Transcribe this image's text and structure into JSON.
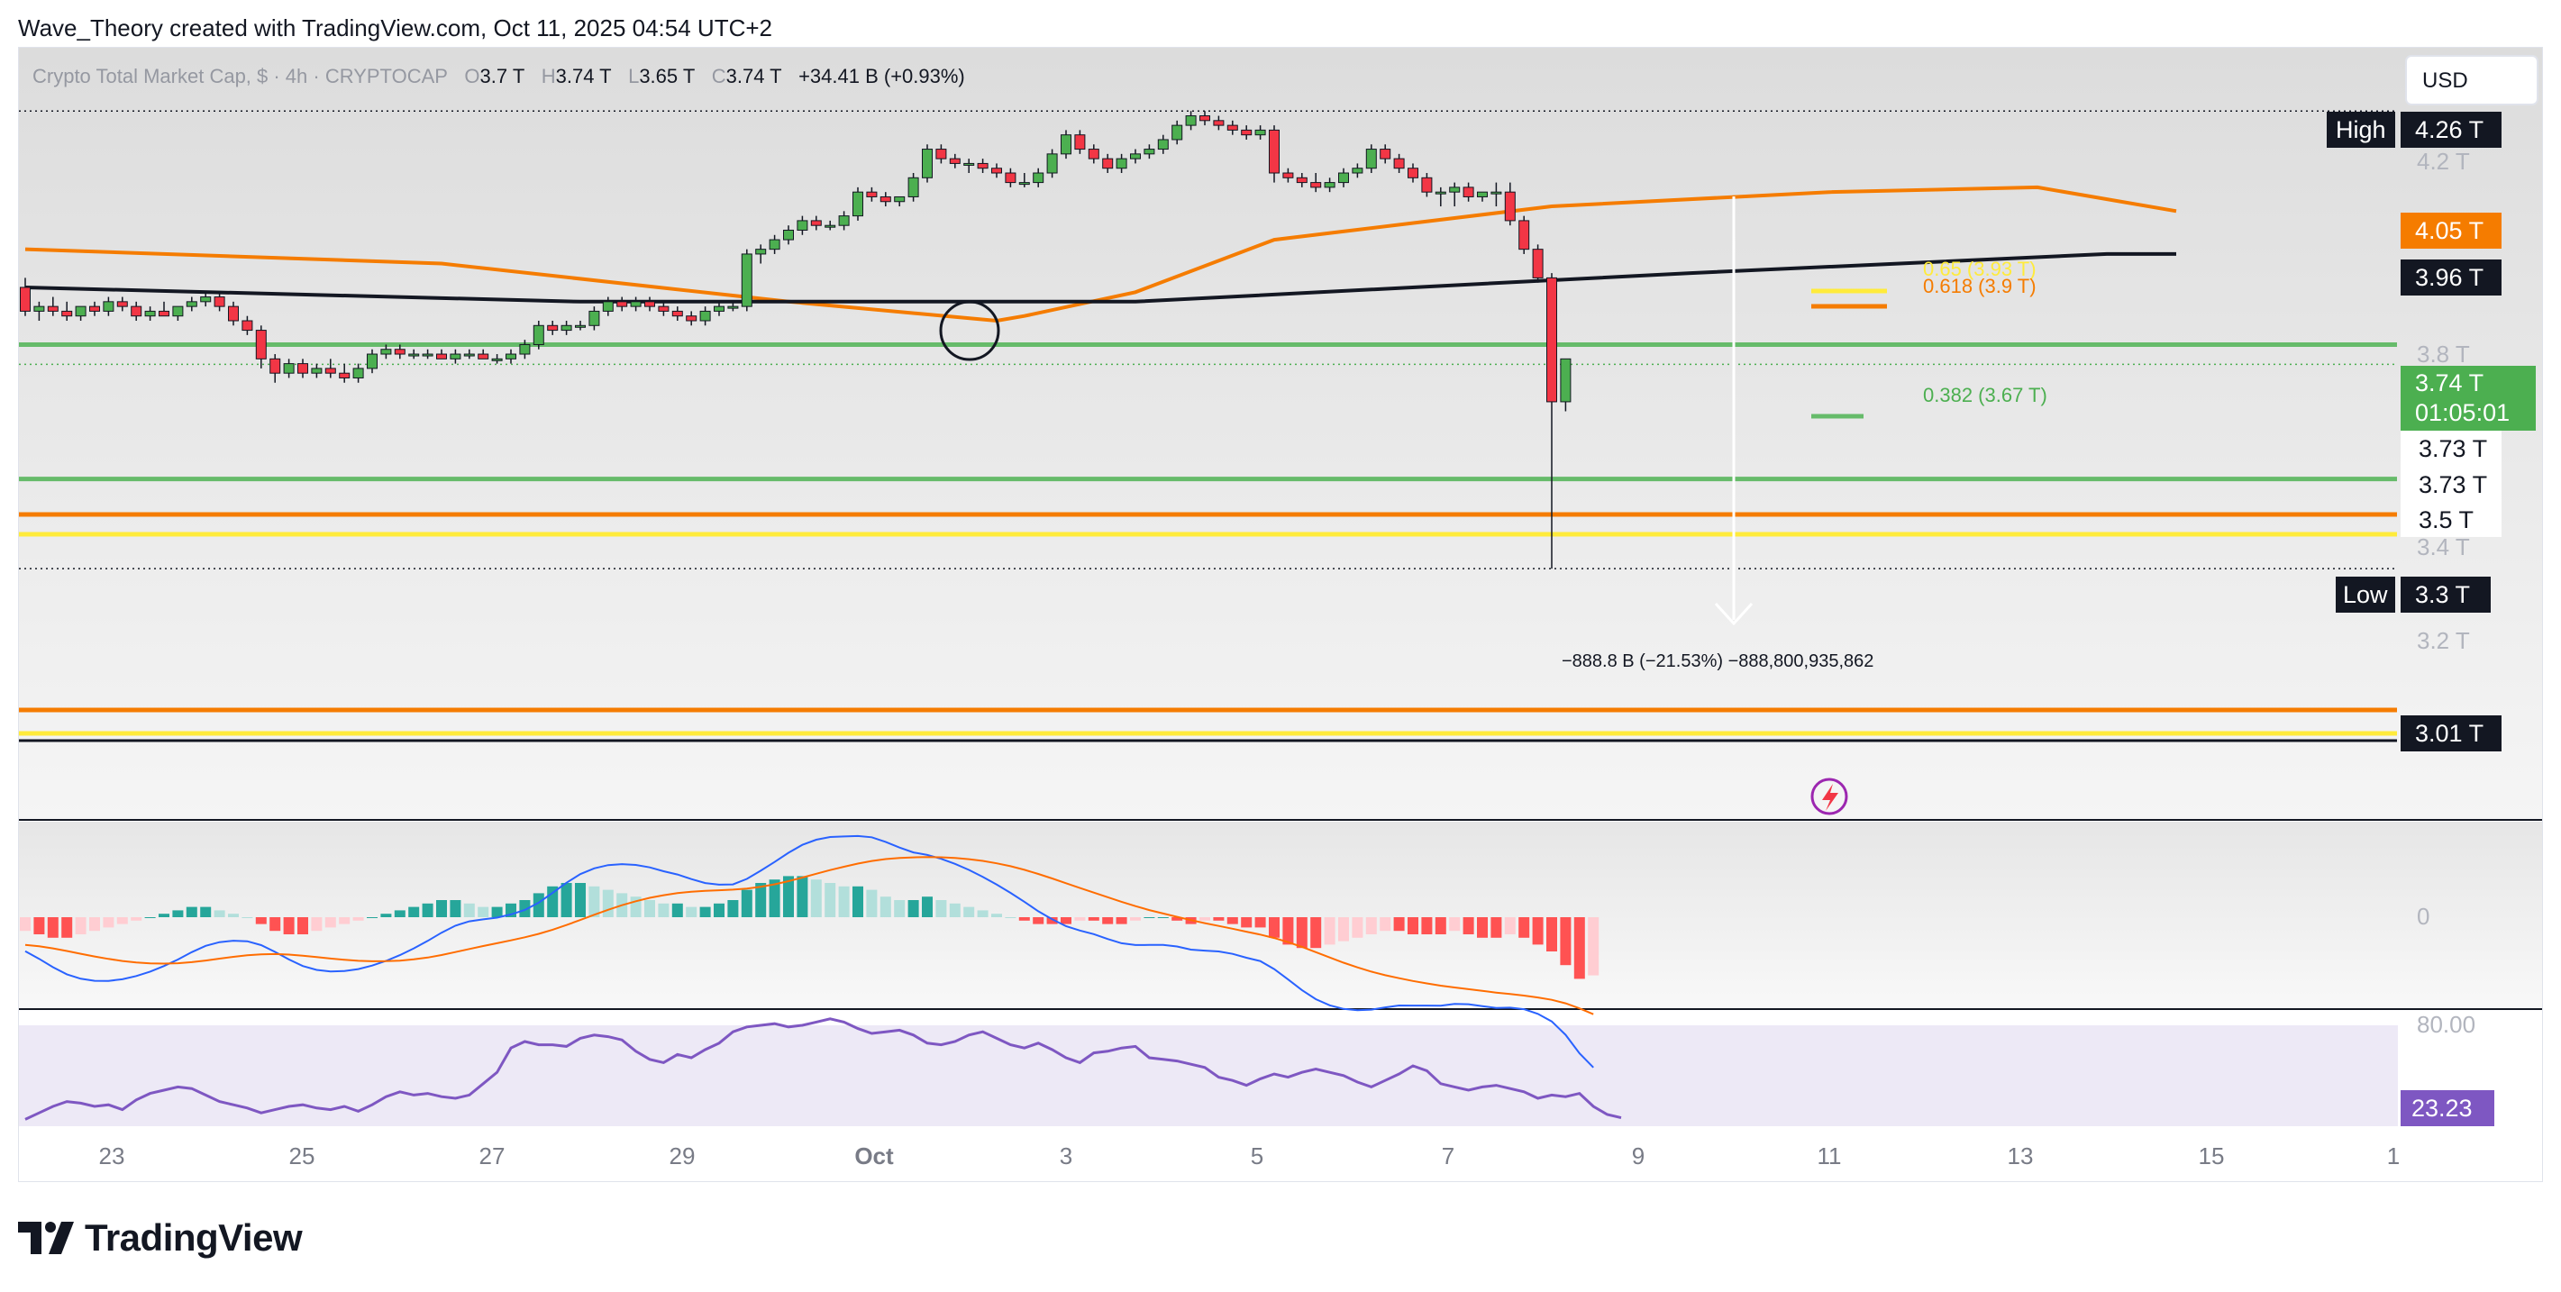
{
  "header": {
    "credit": "Wave_Theory created with TradingView.com, Oct 11, 2025 04:54 UTC+2"
  },
  "legend": {
    "symbol": "Crypto Total Market Cap, $ · 4h · CRYPTOCAP",
    "open_label": "O",
    "open": "3.7 T",
    "high_label": "H",
    "high": "3.74 T",
    "low_label": "L",
    "low": "3.65 T",
    "close_label": "C",
    "close": "3.74 T",
    "change": "+34.41 B (+0.93%)"
  },
  "currency_button": "USD",
  "price_axis": {
    "ticks": [
      "4.2 T",
      "3.8 T",
      "3.4 T",
      "3.2 T"
    ],
    "tags": {
      "high_label": "High",
      "high_value": "4.26 T",
      "ema_orange": "4.05 T",
      "sma_black": "3.96 T",
      "last_price": "3.74 T",
      "countdown": "01:05:01",
      "level_a": "3.73 T",
      "level_b": "3.73 T",
      "level_c": "3.5 T",
      "low_label": "Low",
      "low_value": "3.3 T",
      "support_low": "3.01 T"
    }
  },
  "fib_labels": {
    "f065": "0.65 (3.93 T)",
    "f0618": "0.618 (3.9 T)",
    "f0382": "0.382 (3.67 T)"
  },
  "measurement": {
    "text": "−888.8 B (−21.53%) −888,800,935,862"
  },
  "macd": {
    "zero_label": "0"
  },
  "rsi": {
    "level_label": "80.00",
    "value": "23.23"
  },
  "time_axis": [
    "23",
    "25",
    "27",
    "29",
    "Oct",
    "3",
    "5",
    "7",
    "9",
    "11",
    "13",
    "15",
    "1"
  ],
  "footer": {
    "brand": "TradingView"
  },
  "colors": {
    "up": "#4caf50",
    "down": "#f23645",
    "ema": "#f57c00",
    "sma": "#131722",
    "fib_yellow": "#ffeb3b",
    "support_green": "#66bb6a",
    "macd_line": "#2962ff",
    "signal_line": "#ff6d00",
    "rsi": "#7e57c2"
  },
  "chart_data": {
    "type": "candlestick",
    "timeframe": "4h",
    "x_ticks": [
      "23",
      "25",
      "27",
      "29",
      "Oct",
      "3",
      "5",
      "7",
      "9",
      "11",
      "13",
      "15",
      "1"
    ],
    "y_unit": "T USD",
    "candles": [
      [
        3.89,
        3.91,
        3.83,
        3.84
      ],
      [
        3.84,
        3.86,
        3.82,
        3.85
      ],
      [
        3.85,
        3.87,
        3.83,
        3.84
      ],
      [
        3.84,
        3.86,
        3.82,
        3.83
      ],
      [
        3.83,
        3.85,
        3.82,
        3.85
      ],
      [
        3.85,
        3.86,
        3.83,
        3.84
      ],
      [
        3.84,
        3.87,
        3.83,
        3.86
      ],
      [
        3.86,
        3.87,
        3.84,
        3.85
      ],
      [
        3.85,
        3.86,
        3.82,
        3.83
      ],
      [
        3.83,
        3.85,
        3.82,
        3.84
      ],
      [
        3.84,
        3.86,
        3.83,
        3.83
      ],
      [
        3.83,
        3.85,
        3.82,
        3.85
      ],
      [
        3.85,
        3.87,
        3.84,
        3.86
      ],
      [
        3.86,
        3.88,
        3.85,
        3.87
      ],
      [
        3.87,
        3.88,
        3.84,
        3.85
      ],
      [
        3.85,
        3.86,
        3.81,
        3.82
      ],
      [
        3.82,
        3.83,
        3.79,
        3.8
      ],
      [
        3.8,
        3.81,
        3.72,
        3.74
      ],
      [
        3.74,
        3.75,
        3.69,
        3.71
      ],
      [
        3.71,
        3.74,
        3.7,
        3.73
      ],
      [
        3.73,
        3.74,
        3.7,
        3.71
      ],
      [
        3.71,
        3.73,
        3.7,
        3.72
      ],
      [
        3.72,
        3.74,
        3.7,
        3.71
      ],
      [
        3.71,
        3.73,
        3.69,
        3.7
      ],
      [
        3.7,
        3.73,
        3.69,
        3.72
      ],
      [
        3.72,
        3.76,
        3.71,
        3.75
      ],
      [
        3.75,
        3.77,
        3.74,
        3.76
      ],
      [
        3.76,
        3.77,
        3.74,
        3.75
      ],
      [
        3.75,
        3.76,
        3.74,
        3.75
      ],
      [
        3.75,
        3.76,
        3.74,
        3.75
      ],
      [
        3.75,
        3.76,
        3.74,
        3.74
      ],
      [
        3.74,
        3.76,
        3.73,
        3.75
      ],
      [
        3.75,
        3.76,
        3.74,
        3.75
      ],
      [
        3.75,
        3.76,
        3.74,
        3.74
      ],
      [
        3.74,
        3.75,
        3.73,
        3.74
      ],
      [
        3.74,
        3.76,
        3.73,
        3.75
      ],
      [
        3.75,
        3.78,
        3.74,
        3.77
      ],
      [
        3.77,
        3.82,
        3.76,
        3.81
      ],
      [
        3.81,
        3.82,
        3.79,
        3.8
      ],
      [
        3.8,
        3.82,
        3.79,
        3.81
      ],
      [
        3.81,
        3.82,
        3.8,
        3.81
      ],
      [
        3.81,
        3.85,
        3.8,
        3.84
      ],
      [
        3.84,
        3.87,
        3.83,
        3.86
      ],
      [
        3.86,
        3.87,
        3.84,
        3.85
      ],
      [
        3.85,
        3.87,
        3.84,
        3.86
      ],
      [
        3.86,
        3.87,
        3.84,
        3.85
      ],
      [
        3.85,
        3.86,
        3.83,
        3.84
      ],
      [
        3.84,
        3.85,
        3.82,
        3.83
      ],
      [
        3.83,
        3.84,
        3.81,
        3.82
      ],
      [
        3.82,
        3.85,
        3.81,
        3.84
      ],
      [
        3.84,
        3.86,
        3.83,
        3.85
      ],
      [
        3.85,
        3.86,
        3.84,
        3.85
      ],
      [
        3.85,
        3.97,
        3.84,
        3.96
      ],
      [
        3.96,
        3.98,
        3.94,
        3.97
      ],
      [
        3.97,
        4.0,
        3.96,
        3.99
      ],
      [
        3.99,
        4.02,
        3.98,
        4.01
      ],
      [
        4.01,
        4.04,
        4.0,
        4.03
      ],
      [
        4.03,
        4.04,
        4.01,
        4.02
      ],
      [
        4.02,
        4.03,
        4.01,
        4.02
      ],
      [
        4.02,
        4.05,
        4.01,
        4.04
      ],
      [
        4.04,
        4.1,
        4.03,
        4.09
      ],
      [
        4.09,
        4.1,
        4.07,
        4.08
      ],
      [
        4.08,
        4.09,
        4.06,
        4.07
      ],
      [
        4.07,
        4.08,
        4.06,
        4.08
      ],
      [
        4.08,
        4.13,
        4.07,
        4.12
      ],
      [
        4.12,
        4.19,
        4.11,
        4.18
      ],
      [
        4.18,
        4.19,
        4.15,
        4.16
      ],
      [
        4.16,
        4.17,
        4.14,
        4.15
      ],
      [
        4.15,
        4.16,
        4.13,
        4.15
      ],
      [
        4.15,
        4.16,
        4.13,
        4.14
      ],
      [
        4.14,
        4.15,
        4.12,
        4.13
      ],
      [
        4.13,
        4.14,
        4.1,
        4.11
      ],
      [
        4.11,
        4.13,
        4.1,
        4.11
      ],
      [
        4.11,
        4.14,
        4.1,
        4.13
      ],
      [
        4.13,
        4.18,
        4.12,
        4.17
      ],
      [
        4.17,
        4.22,
        4.16,
        4.21
      ],
      [
        4.21,
        4.22,
        4.17,
        4.18
      ],
      [
        4.18,
        4.19,
        4.15,
        4.16
      ],
      [
        4.16,
        4.17,
        4.13,
        4.14
      ],
      [
        4.14,
        4.17,
        4.13,
        4.16
      ],
      [
        4.16,
        4.18,
        4.15,
        4.17
      ],
      [
        4.17,
        4.19,
        4.16,
        4.18
      ],
      [
        4.18,
        4.21,
        4.17,
        4.2
      ],
      [
        4.2,
        4.24,
        4.19,
        4.23
      ],
      [
        4.23,
        4.26,
        4.22,
        4.25
      ],
      [
        4.25,
        4.26,
        4.23,
        4.24
      ],
      [
        4.24,
        4.25,
        4.22,
        4.23
      ],
      [
        4.23,
        4.24,
        4.21,
        4.22
      ],
      [
        4.22,
        4.23,
        4.2,
        4.21
      ],
      [
        4.21,
        4.23,
        4.2,
        4.22
      ],
      [
        4.22,
        4.23,
        4.11,
        4.13
      ],
      [
        4.13,
        4.14,
        4.11,
        4.12
      ],
      [
        4.12,
        4.13,
        4.1,
        4.11
      ],
      [
        4.11,
        4.13,
        4.09,
        4.1
      ],
      [
        4.1,
        4.12,
        4.09,
        4.11
      ],
      [
        4.11,
        4.14,
        4.1,
        4.13
      ],
      [
        4.13,
        4.15,
        4.12,
        4.14
      ],
      [
        4.14,
        4.19,
        4.13,
        4.18
      ],
      [
        4.18,
        4.19,
        4.15,
        4.16
      ],
      [
        4.16,
        4.17,
        4.13,
        4.14
      ],
      [
        4.14,
        4.15,
        4.11,
        4.12
      ],
      [
        4.12,
        4.13,
        4.08,
        4.09
      ],
      [
        4.09,
        4.1,
        4.06,
        4.09
      ],
      [
        4.09,
        4.11,
        4.06,
        4.1
      ],
      [
        4.1,
        4.11,
        4.07,
        4.08
      ],
      [
        4.08,
        4.09,
        4.07,
        4.09
      ],
      [
        4.09,
        4.11,
        4.06,
        4.09
      ],
      [
        4.09,
        4.11,
        4.02,
        4.03
      ],
      [
        4.03,
        4.04,
        3.96,
        3.97
      ],
      [
        3.97,
        3.98,
        3.9,
        3.91
      ],
      [
        3.91,
        3.92,
        3.3,
        3.65
      ],
      [
        3.65,
        3.74,
        3.63,
        3.74
      ]
    ],
    "lines": [
      {
        "label": "EMA",
        "color": "#f57c00",
        "points": [
          [
            0,
            3.97
          ],
          [
            30,
            3.94
          ],
          [
            55,
            3.86
          ],
          [
            70,
            3.82
          ],
          [
            72,
            3.83
          ],
          [
            80,
            3.88
          ],
          [
            90,
            3.99
          ],
          [
            110,
            4.06
          ],
          [
            130,
            4.09
          ],
          [
            145,
            4.1
          ],
          [
            155,
            4.05
          ]
        ]
      },
      {
        "label": "SMA",
        "color": "#131722",
        "points": [
          [
            0,
            3.89
          ],
          [
            40,
            3.86
          ],
          [
            70,
            3.86
          ],
          [
            80,
            3.86
          ],
          [
            120,
            3.92
          ],
          [
            150,
            3.96
          ],
          [
            155,
            3.96
          ]
        ]
      }
    ],
    "horizontal_levels": [
      3.77,
      3.73,
      3.5,
      3.47,
      3.3,
      3.01
    ],
    "fib_levels": {
      "0.65": 3.93,
      "0.618": 3.9,
      "0.382": 3.67
    },
    "macd": {
      "zero_label": "0",
      "histogram": [
        -0.4,
        -0.5,
        -0.6,
        -0.6,
        -0.5,
        -0.4,
        -0.3,
        -0.2,
        -0.1,
        0.0,
        0.1,
        0.2,
        0.3,
        0.3,
        0.2,
        0.1,
        0.0,
        -0.2,
        -0.4,
        -0.5,
        -0.5,
        -0.4,
        -0.3,
        -0.2,
        -0.1,
        0.0,
        0.1,
        0.2,
        0.3,
        0.4,
        0.5,
        0.5,
        0.4,
        0.3,
        0.3,
        0.4,
        0.5,
        0.7,
        0.9,
        1.0,
        1.0,
        0.9,
        0.8,
        0.7,
        0.6,
        0.5,
        0.4,
        0.4,
        0.3,
        0.3,
        0.4,
        0.5,
        0.8,
        1.0,
        1.1,
        1.2,
        1.2,
        1.1,
        1.0,
        0.9,
        0.9,
        0.8,
        0.6,
        0.5,
        0.5,
        0.6,
        0.5,
        0.4,
        0.3,
        0.2,
        0.1,
        0.0,
        -0.1,
        -0.2,
        -0.2,
        -0.2,
        -0.1,
        -0.1,
        -0.2,
        -0.2,
        -0.1,
        0.0,
        0.0,
        -0.1,
        -0.2,
        -0.1,
        -0.1,
        -0.2,
        -0.3,
        -0.3,
        -0.6,
        -0.8,
        -0.9,
        -0.9,
        -0.8,
        -0.7,
        -0.6,
        -0.5,
        -0.4,
        -0.4,
        -0.5,
        -0.5,
        -0.5,
        -0.4,
        -0.5,
        -0.6,
        -0.6,
        -0.5,
        -0.6,
        -0.8,
        -1.0,
        -1.4,
        -1.8,
        -1.7
      ]
    },
    "rsi": {
      "level": 80.0,
      "value": 23.23,
      "values": [
        22,
        26,
        30,
        33,
        32,
        30,
        31,
        28,
        34,
        38,
        40,
        42,
        41,
        37,
        33,
        31,
        29,
        26,
        28,
        30,
        31,
        29,
        28,
        30,
        27,
        31,
        36,
        39,
        37,
        38,
        36,
        35,
        37,
        44,
        51,
        66,
        70,
        68,
        68,
        67,
        72,
        74,
        73,
        71,
        64,
        59,
        57,
        62,
        60,
        65,
        69,
        76,
        79,
        80,
        81,
        79,
        80,
        82,
        84,
        82,
        78,
        75,
        76,
        77,
        74,
        69,
        68,
        70,
        74,
        76,
        72,
        68,
        66,
        69,
        65,
        60,
        57,
        63,
        64,
        66,
        67,
        60,
        59,
        58,
        56,
        54,
        48,
        46,
        43,
        47,
        50,
        48,
        51,
        53,
        51,
        49,
        45,
        42,
        46,
        50,
        55,
        52,
        44,
        42,
        40,
        42,
        43,
        41,
        39,
        35,
        37,
        36,
        38,
        30,
        25,
        23
      ]
    }
  }
}
